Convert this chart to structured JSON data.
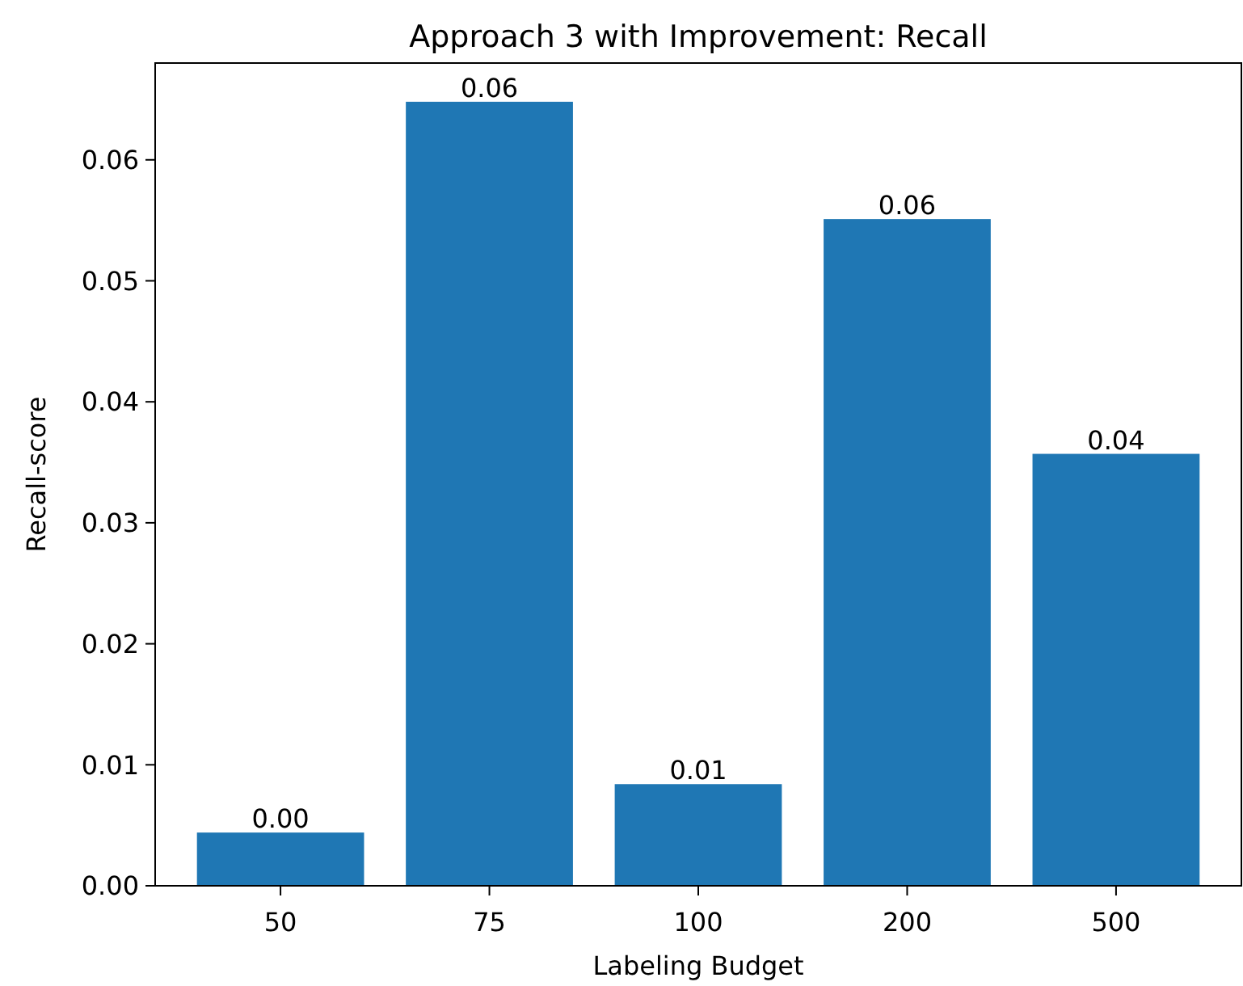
{
  "chart_data": {
    "type": "bar",
    "title": "Approach 3 with Improvement: Recall",
    "xlabel": "Labeling Budget",
    "ylabel": "Recall-score",
    "categories": [
      "50",
      "75",
      "100",
      "200",
      "500"
    ],
    "values": [
      0.0044,
      0.0648,
      0.0084,
      0.0551,
      0.0357
    ],
    "value_labels": [
      "0.00",
      "0.06",
      "0.01",
      "0.06",
      "0.04"
    ],
    "color": "#1f77b4",
    "ylim": [
      0,
      0.068
    ],
    "yticks": [
      {
        "value": 0,
        "label": "0.00"
      },
      {
        "value": 0.01,
        "label": "0.01"
      },
      {
        "value": 0.02,
        "label": "0.02"
      },
      {
        "value": 0.03,
        "label": "0.03"
      },
      {
        "value": 0.04,
        "label": "0.04"
      },
      {
        "value": 0.05,
        "label": "0.05"
      },
      {
        "value": 0.06,
        "label": "0.06"
      }
    ],
    "grid": false
  }
}
